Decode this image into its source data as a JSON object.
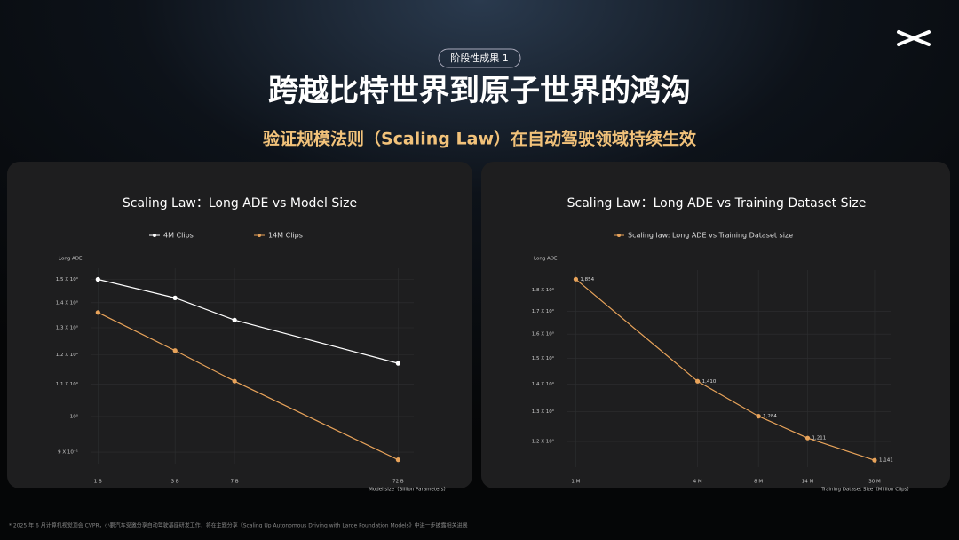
{
  "header": {
    "badge": "阶段性成果 1",
    "title": "跨越比特世界到原子世界的鸿沟",
    "subtitle": "验证规模法则（Scaling Law）在自动驾驶领域持续生效"
  },
  "footnote": "* 2025 年 6 月计算机视觉顶会 CVPR，小鹏汽车受邀分享自动驾驶基座研发工作，将在主题分享《Scaling Up Autonomous Driving with Large Foundation Models》中进一步披露相关进展",
  "chart_data": [
    {
      "type": "line",
      "title": "Scaling Law：Long ADE vs Model Size",
      "x_label": "Model size（Billion Parameters）",
      "y_label": "Long ADE",
      "x": [
        1,
        3,
        7,
        72
      ],
      "xticks": [
        {
          "value": 1,
          "label": "1 B"
        },
        {
          "value": 3,
          "label": "3 B"
        },
        {
          "value": 7,
          "label": "7 B"
        },
        {
          "value": 72,
          "label": "72 B"
        }
      ],
      "xlim": [
        0.9,
        90
      ],
      "x_log": true,
      "ylim": [
        0.87,
        1.55
      ],
      "y_log": true,
      "yticks": [
        {
          "value": 1.5,
          "label": "1.5 X 10⁰"
        },
        {
          "value": 1.4,
          "label": "1.4 X 10⁰"
        },
        {
          "value": 1.3,
          "label": "1.3 X 10⁰"
        },
        {
          "value": 1.2,
          "label": "1.2 X 10⁰"
        },
        {
          "value": 1.1,
          "label": "1.1 X 10⁰"
        },
        {
          "value": 1,
          "label": "10⁰"
        },
        {
          "value": 0.9,
          "label": "9 X 10⁻¹"
        }
      ],
      "grid": true,
      "series": [
        {
          "name": "4M Clips",
          "color": "#ffffff",
          "values": [
            1.5,
            1.42,
            1.33,
            1.17
          ]
        },
        {
          "name": "14M Clips",
          "color": "#e8a35a",
          "values": [
            1.36,
            1.215,
            1.11,
            0.88
          ]
        }
      ]
    },
    {
      "type": "line",
      "title": "Scaling Law：Long ADE vs Training Dataset Size",
      "x_label": "Training Dataset Size（Million Clips）",
      "y_label": "Long ADE",
      "x": [
        1,
        4,
        8,
        14,
        30
      ],
      "xticks": [
        {
          "value": 1,
          "label": "1 M"
        },
        {
          "value": 4,
          "label": "4 M"
        },
        {
          "value": 8,
          "label": "8 M"
        },
        {
          "value": 14,
          "label": "14 M"
        },
        {
          "value": 30,
          "label": "30 M"
        }
      ],
      "xlim": [
        0.9,
        36
      ],
      "x_log": true,
      "ylim": [
        1.12,
        1.9
      ],
      "y_log": true,
      "yticks": [
        {
          "value": 1.8,
          "label": "1.8 X 10⁰"
        },
        {
          "value": 1.7,
          "label": "1.7 X 10⁰"
        },
        {
          "value": 1.6,
          "label": "1.6 X 10⁰"
        },
        {
          "value": 1.5,
          "label": "1.5 X 10⁰"
        },
        {
          "value": 1.4,
          "label": "1.4 X 10⁰"
        },
        {
          "value": 1.3,
          "label": "1.3 X 10⁰"
        },
        {
          "value": 1.2,
          "label": "1.2 X 10⁰"
        }
      ],
      "grid": true,
      "series": [
        {
          "name": "Scaling law: Long ADE vs Training Dataset size",
          "color": "#e8a35a",
          "values": [
            1.854,
            1.41,
            1.284,
            1.211,
            1.141
          ],
          "value_labels": [
            "1,854",
            "1,410",
            "1,284",
            "1,211",
            "1,141"
          ]
        }
      ]
    }
  ]
}
